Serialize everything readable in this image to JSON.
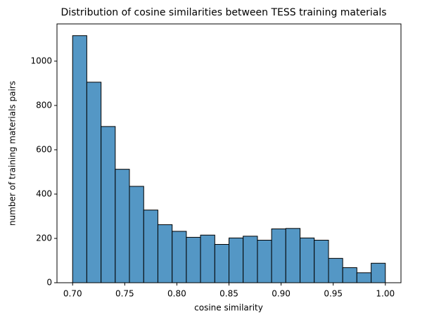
{
  "chart_data": {
    "type": "histogram",
    "title": "Distribution of cosine similarities between TESS training materials",
    "x_label": "cosine similarity",
    "y_label": "number of training materials pairs",
    "bins": [
      0.7,
      0.7136,
      0.7273,
      0.7409,
      0.7545,
      0.7682,
      0.7818,
      0.7955,
      0.8091,
      0.8227,
      0.8364,
      0.85,
      0.8636,
      0.8773,
      0.8909,
      0.9045,
      0.9182,
      0.9318,
      0.9455,
      0.9591,
      0.9727,
      0.9864,
      1.0
    ],
    "values": [
      1115,
      905,
      705,
      512,
      435,
      328,
      262,
      232,
      205,
      215,
      173,
      202,
      210,
      192,
      243,
      245,
      202,
      192,
      110,
      68,
      45,
      88
    ],
    "color": "#5497c5",
    "xlim": [
      0.685,
      1.015
    ],
    "ylim": [
      0,
      1168
    ],
    "xticks": [
      {
        "value": 0.7,
        "label": "0.70"
      },
      {
        "value": 0.75,
        "label": "0.75"
      },
      {
        "value": 0.8,
        "label": "0.80"
      },
      {
        "value": 0.85,
        "label": "0.85"
      },
      {
        "value": 0.9,
        "label": "0.90"
      },
      {
        "value": 0.95,
        "label": "0.95"
      },
      {
        "value": 1.0,
        "label": "1.00"
      }
    ],
    "yticks": [
      0,
      200,
      400,
      600,
      800,
      1000
    ]
  }
}
